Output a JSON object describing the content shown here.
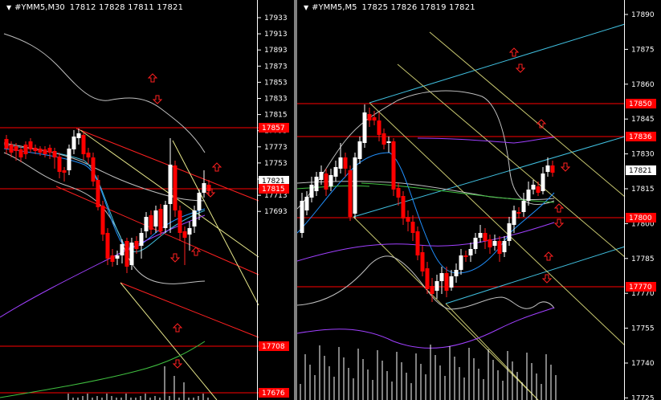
{
  "colors": {
    "background": "#000000",
    "bull": "#ffffff",
    "bear": "#ff0000",
    "level_line": "#ff0000",
    "channel_red": "#ff2020",
    "channel_yellow": "#e6e68a",
    "channel_cyan": "#40c0e0",
    "band": "#bfbfbf",
    "ma_blue": "#2090ff",
    "ma_purple": "#a040ff",
    "ma_green": "#40c040"
  },
  "left": {
    "title": "#YMM5,M30",
    "ohlc": "17812 17828 17811 17821",
    "scale_ticks": [
      "17933",
      "17913",
      "17893",
      "17873",
      "17853",
      "17833",
      "17815",
      "17793",
      "17773",
      "17753",
      "17733",
      "17713",
      "17693"
    ],
    "price_labels": [
      {
        "text": "17857",
        "color": "#ff0000"
      },
      {
        "text": "17821",
        "color": "#ffffff"
      },
      {
        "text": "17815",
        "color": "#ff0000"
      },
      {
        "text": "17708",
        "color": "#ff0000"
      },
      {
        "text": "17676",
        "color": "#ff0000"
      }
    ]
  },
  "right": {
    "title": "#YMM5,M5",
    "ohlc": "17825 17826 17819 17821",
    "scale_ticks": [
      "17890",
      "17875",
      "17860",
      "17845",
      "17830",
      "17815",
      "17800",
      "17785",
      "17770",
      "17755",
      "17740",
      "17725"
    ],
    "price_labels": [
      {
        "text": "17850",
        "color": "#ff0000"
      },
      {
        "text": "17836",
        "color": "#ff0000"
      },
      {
        "text": "17821",
        "color": "#ffffff"
      },
      {
        "text": "17800",
        "color": "#ff0000"
      },
      {
        "text": "17770",
        "color": "#ff0000"
      }
    ]
  }
}
